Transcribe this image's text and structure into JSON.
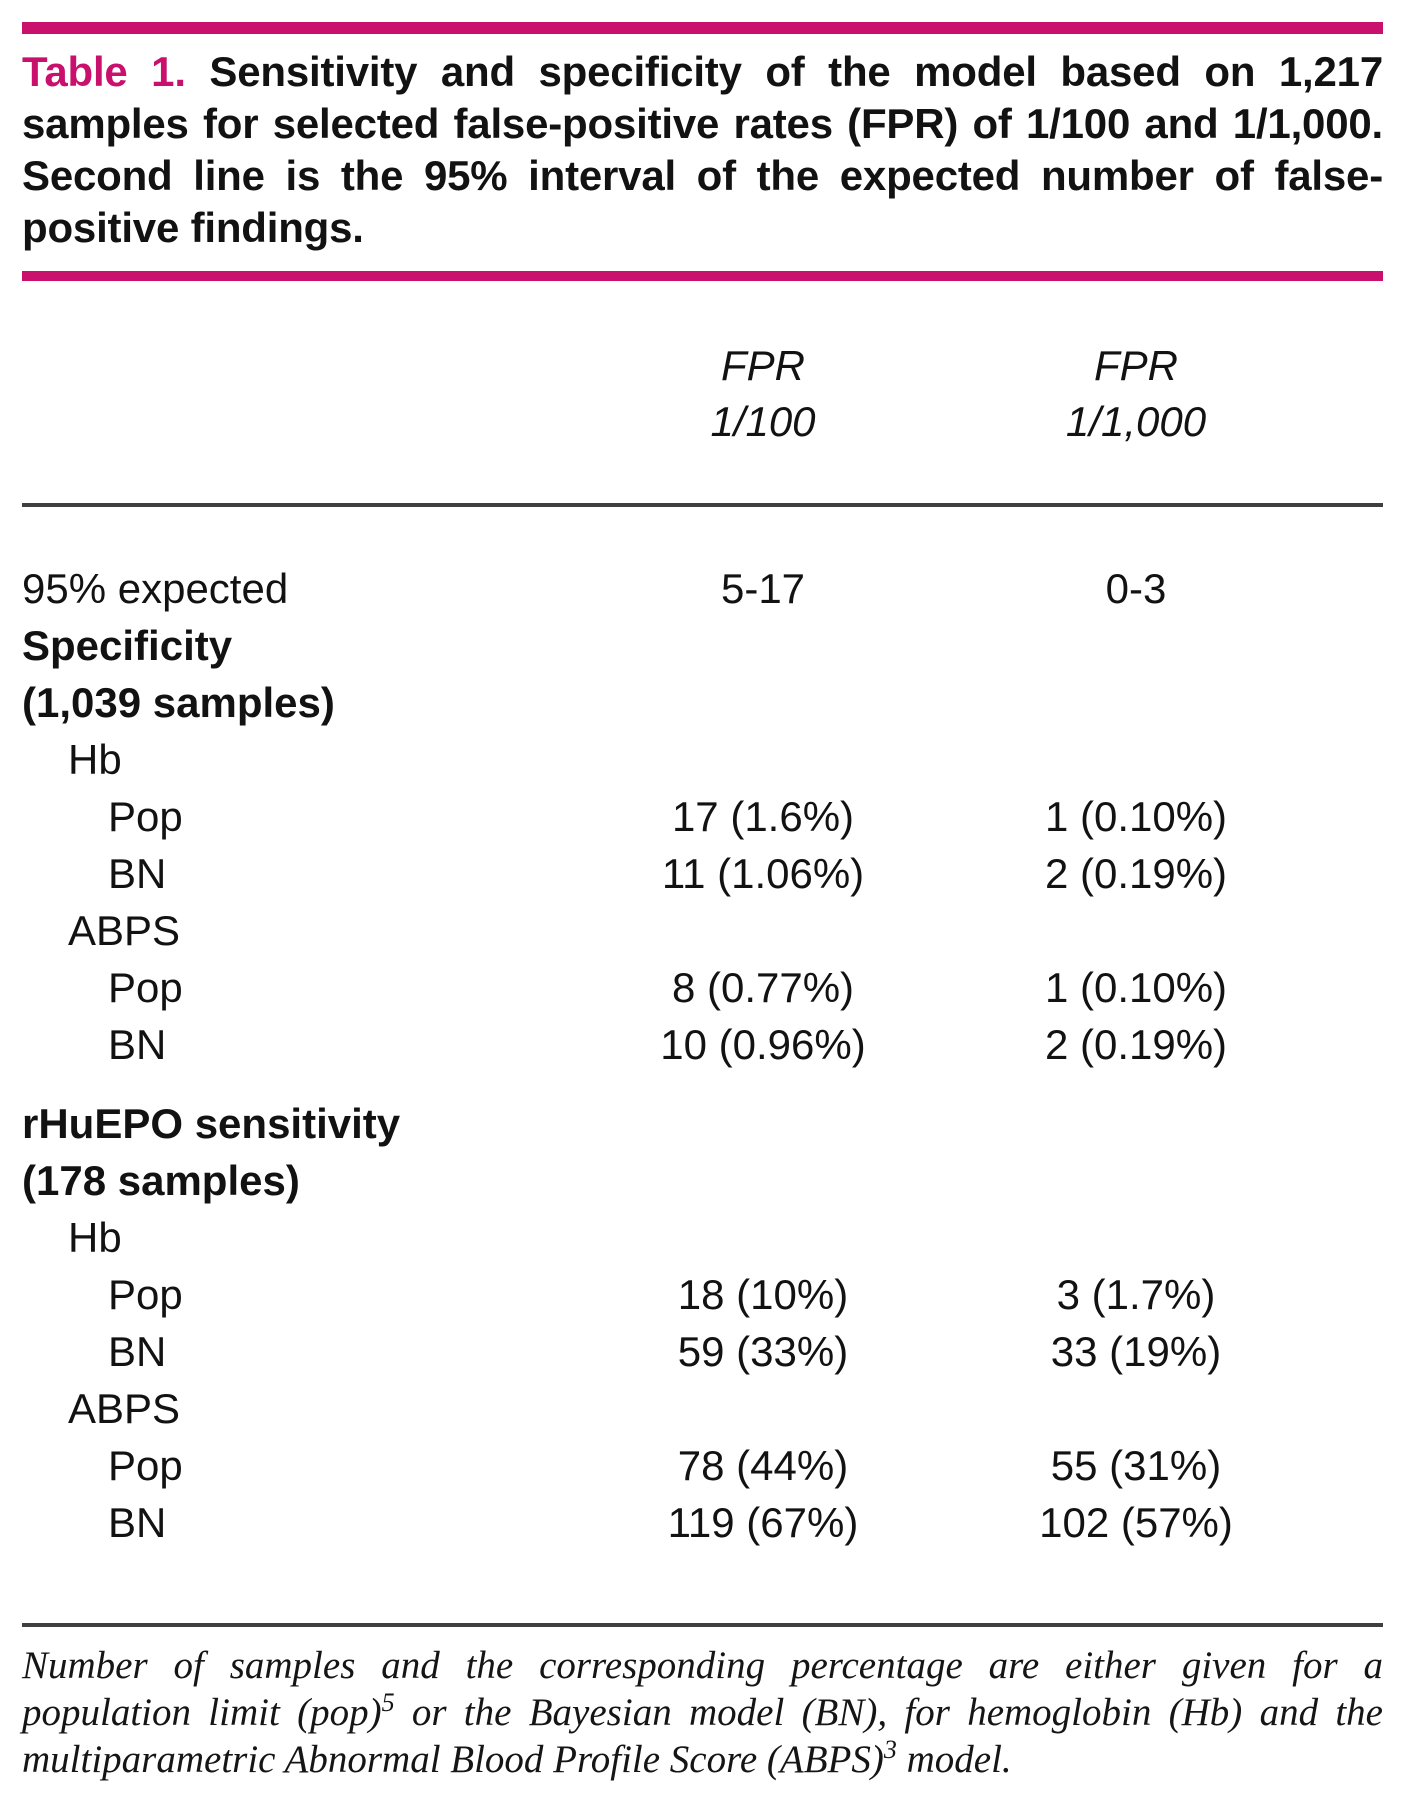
{
  "colors": {
    "accent": "#C8106C",
    "rule": "#3f3f3f",
    "text": "#121212"
  },
  "caption": {
    "label": "Table 1.",
    "text": "Sensitivity and specificity of the model based on 1,217 samples for selected false-positive rates (FPR) of 1/100 and 1/1,000. Second line is the 95% interval of the expected number of false-positive findings."
  },
  "header": {
    "col1": {
      "line1": "FPR",
      "line2": "1/100"
    },
    "col2": {
      "line1": "FPR",
      "line2": "1/1,000"
    }
  },
  "table": {
    "rows": [
      {
        "label": "95% expected",
        "indent": 0,
        "bold": false,
        "col1": "5-17",
        "col2": "0-3"
      },
      {
        "label": "Specificity",
        "indent": 0,
        "bold": true
      },
      {
        "label": "(1,039 samples)",
        "indent": 0,
        "bold": true
      },
      {
        "label": "Hb",
        "indent": 1,
        "bold": false
      },
      {
        "label": "Pop",
        "indent": 2,
        "bold": false,
        "col1": "17 (1.6%)",
        "col2": "1 (0.10%)"
      },
      {
        "label": "BN",
        "indent": 2,
        "bold": false,
        "col1": "11 (1.06%)",
        "col2": "2 (0.19%)"
      },
      {
        "label": "ABPS",
        "indent": 1,
        "bold": false
      },
      {
        "label": "Pop",
        "indent": 2,
        "bold": false,
        "col1": "8 (0.77%)",
        "col2": "1 (0.10%)"
      },
      {
        "label": "BN",
        "indent": 2,
        "bold": false,
        "col1": "10 (0.96%)",
        "col2": "2 (0.19%)"
      },
      {
        "spacer": true
      },
      {
        "label": "rHuEPO sensitivity",
        "indent": 0,
        "bold": true
      },
      {
        "label": "(178 samples)",
        "indent": 0,
        "bold": true
      },
      {
        "label": "Hb",
        "indent": 1,
        "bold": false
      },
      {
        "label": "Pop",
        "indent": 2,
        "bold": false,
        "col1": "18 (10%)",
        "col2": "3 (1.7%)"
      },
      {
        "label": "BN",
        "indent": 2,
        "bold": false,
        "col1": "59 (33%)",
        "col2": "33 (19%)"
      },
      {
        "label": "ABPS",
        "indent": 1,
        "bold": false
      },
      {
        "label": "Pop",
        "indent": 2,
        "bold": false,
        "col1": "78 (44%)",
        "col2": "55 (31%)"
      },
      {
        "label": "BN",
        "indent": 2,
        "bold": false,
        "col1": "119 (67%)",
        "col2": "102 (57%)"
      }
    ]
  },
  "footnote": {
    "segments": [
      {
        "text": "Number of samples and the corresponding percentage are either given for a population limit (pop)"
      },
      {
        "text": "5",
        "sup": true
      },
      {
        "text": " or the Bayesian model (BN), for hemoglobin (Hb) and the multiparametric Abnormal Blood Profile Score (ABPS)"
      },
      {
        "text": "3",
        "sup": true
      },
      {
        "text": " model."
      }
    ]
  }
}
